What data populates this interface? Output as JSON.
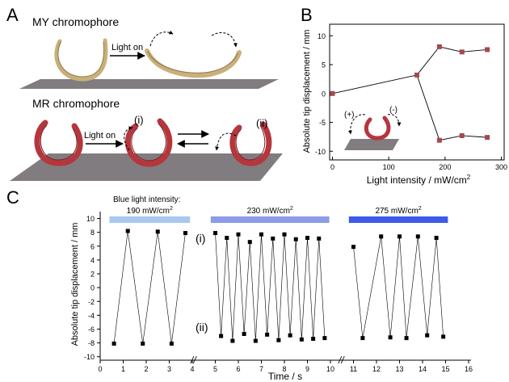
{
  "panels": {
    "a": {
      "letter": "A",
      "my_title": "MY chromophore",
      "mr_title": "MR chromophore",
      "light_on_1": "Light on",
      "light_on_2": "Light on",
      "state_i": "(i)",
      "state_ii": "(ii)"
    },
    "b": {
      "letter": "B"
    },
    "c": {
      "letter": "C",
      "blue_caption": "Blue light intensity:"
    }
  },
  "colors": {
    "my_strip": "#c9b07a",
    "mr_strip": "#b5363c",
    "platform": "#807c80",
    "marker_b": "#a54a4a",
    "marker_c": "#000000",
    "bar_190": "#a9c8f0",
    "bar_230": "#8c9be6",
    "bar_275": "#3c5be8"
  },
  "chart_data": [
    {
      "type": "line",
      "panel": "B",
      "xlabel": "Light intensity / mW/cm",
      "xlabel_sup": "2",
      "ylabel": "Absolute tip displacement / mm",
      "xlim": [
        -5,
        305
      ],
      "ylim": [
        -11.5,
        12
      ],
      "xticks": [
        0,
        100,
        200,
        300
      ],
      "xtick_labels": [
        "0",
        "100",
        "200",
        "300"
      ],
      "yticks": [
        -10,
        -5,
        0,
        5,
        10
      ],
      "yticks_labels": [
        "-10",
        "-5",
        "0",
        "5",
        "10"
      ],
      "inset_labels": [
        "(+)",
        "(-)"
      ],
      "series": [
        {
          "points": [
            [
              0,
              0
            ],
            [
              150,
              3.2
            ],
            [
              190,
              8.1
            ],
            [
              230,
              7.2
            ],
            [
              275,
              7.6
            ]
          ]
        },
        {
          "points": [
            [
              150,
              3.2
            ],
            [
              190,
              -8.1
            ],
            [
              230,
              -7.3
            ],
            [
              275,
              -7.6
            ]
          ]
        }
      ]
    },
    {
      "type": "line",
      "panel": "C",
      "xlabel": "Time / s",
      "ylabel": "Absolute tip displacement / mm",
      "ylim": [
        -10.5,
        11
      ],
      "yticks": [
        -10,
        -8,
        -6,
        -4,
        -2,
        0,
        2,
        4,
        6,
        8,
        10
      ],
      "ytick_labels": [
        "-10",
        "-8",
        "-6",
        "-4",
        "-2",
        "0",
        "2",
        "4",
        "6",
        "8",
        "10"
      ],
      "xtick_labels": [
        "0",
        "1",
        "2",
        "3",
        "4",
        "5",
        "6",
        "7",
        "8",
        "9",
        "10",
        "11",
        "12",
        "13",
        "14",
        "15",
        "16"
      ],
      "axis_break": "//",
      "state_labels": [
        "(i)",
        "(ii)"
      ],
      "segments": [
        {
          "name": "190 mW/cm",
          "label_sup": "2",
          "x": [
            0.6,
            1.2,
            1.85,
            2.5,
            3.1,
            3.7
          ],
          "y": [
            -8.1,
            8.2,
            -8.1,
            8.1,
            -8.1,
            7.9
          ]
        },
        {
          "name": "230 mW/cm",
          "label_sup": "2",
          "x": [
            5.0,
            5.25,
            5.5,
            5.75,
            6.0,
            6.25,
            6.5,
            6.75,
            7.0,
            7.25,
            7.5,
            7.75,
            8.0,
            8.25,
            8.5,
            8.75,
            9.0,
            9.25,
            9.5,
            9.75
          ],
          "y": [
            7.9,
            -7.0,
            7.2,
            -7.7,
            7.7,
            -6.7,
            6.6,
            -7.7,
            7.7,
            -6.8,
            7.1,
            -7.6,
            7.7,
            -6.9,
            7.0,
            -7.5,
            7.2,
            -7.4,
            7.1,
            -7.3
          ]
        },
        {
          "name": "275 mW/cm",
          "label_sup": "2",
          "x": [
            11.0,
            11.4,
            12.2,
            12.6,
            13.0,
            13.3,
            13.8,
            14.2,
            14.6,
            14.9
          ],
          "y": [
            5.9,
            -7.3,
            7.4,
            -7.2,
            7.4,
            -7.3,
            7.4,
            -6.9,
            7.2,
            -7.1
          ]
        }
      ]
    }
  ]
}
